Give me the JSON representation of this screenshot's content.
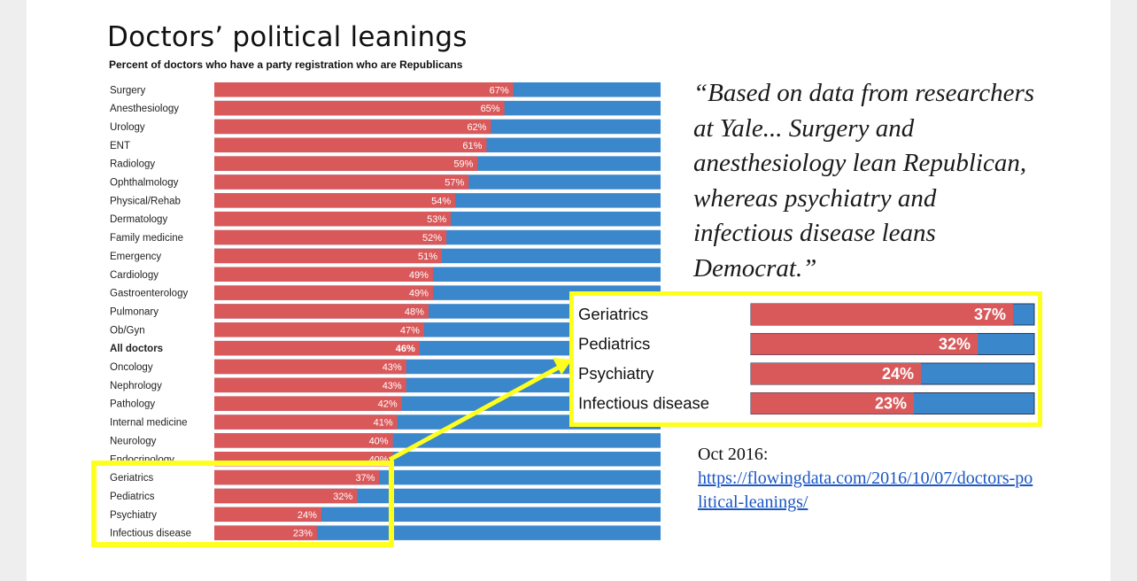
{
  "title": "Doctors’ political leanings",
  "subtitle": "Percent of doctors who have a party registration who are Republicans",
  "colors": {
    "republican": "#d9595b",
    "democrat": "#3a87cc",
    "highlight": "#ffff1e"
  },
  "chart_data": {
    "type": "bar",
    "title": "Doctors’ political leanings",
    "subtitle": "Percent of doctors who have a party registration who are Republicans",
    "orientation": "horizontal",
    "stacked": true,
    "xlim": [
      0,
      100
    ],
    "categories": [
      "Surgery",
      "Anesthesiology",
      "Urology",
      "ENT",
      "Radiology",
      "Ophthalmology",
      "Physical/Rehab",
      "Dermatology",
      "Family medicine",
      "Emergency",
      "Cardiology",
      "Gastroenterology",
      "Pulmonary",
      "Ob/Gyn",
      "All doctors",
      "Oncology",
      "Nephrology",
      "Pathology",
      "Internal medicine",
      "Neurology",
      "Endocrinology",
      "Geriatrics",
      "Pediatrics",
      "Psychiatry",
      "Infectious disease"
    ],
    "values": [
      67,
      65,
      62,
      61,
      59,
      57,
      54,
      53,
      52,
      51,
      49,
      49,
      48,
      47,
      46,
      43,
      43,
      42,
      41,
      40,
      40,
      37,
      32,
      24,
      23
    ],
    "value_labels": [
      "67%",
      "65%",
      "62%",
      "61%",
      "59%",
      "57%",
      "54%",
      "53%",
      "52%",
      "51%",
      "49%",
      "49%",
      "48%",
      "47%",
      "46%",
      "43%",
      "43%",
      "42%",
      "41%",
      "40%",
      "40%",
      "37%",
      "32%",
      "24%",
      "23%"
    ],
    "bold_category": "All doctors",
    "legend": "none",
    "grid": false
  },
  "zoom": {
    "categories": [
      "Geriatrics",
      "Pediatrics",
      "Psychiatry",
      "Infectious disease"
    ],
    "values": [
      37,
      32,
      24,
      23
    ],
    "value_labels": [
      "37%",
      "32%",
      "24%",
      "23%"
    ]
  },
  "quote": "“Based on data from researchers at Yale... Surgery and anesthesiology lean Republican, whereas psychiatry and infectious disease leans Democrat.”",
  "source": {
    "date": "Oct 2016:",
    "link": "https://flowingdata.com/2016/10/07/doctors-political-leanings/"
  }
}
